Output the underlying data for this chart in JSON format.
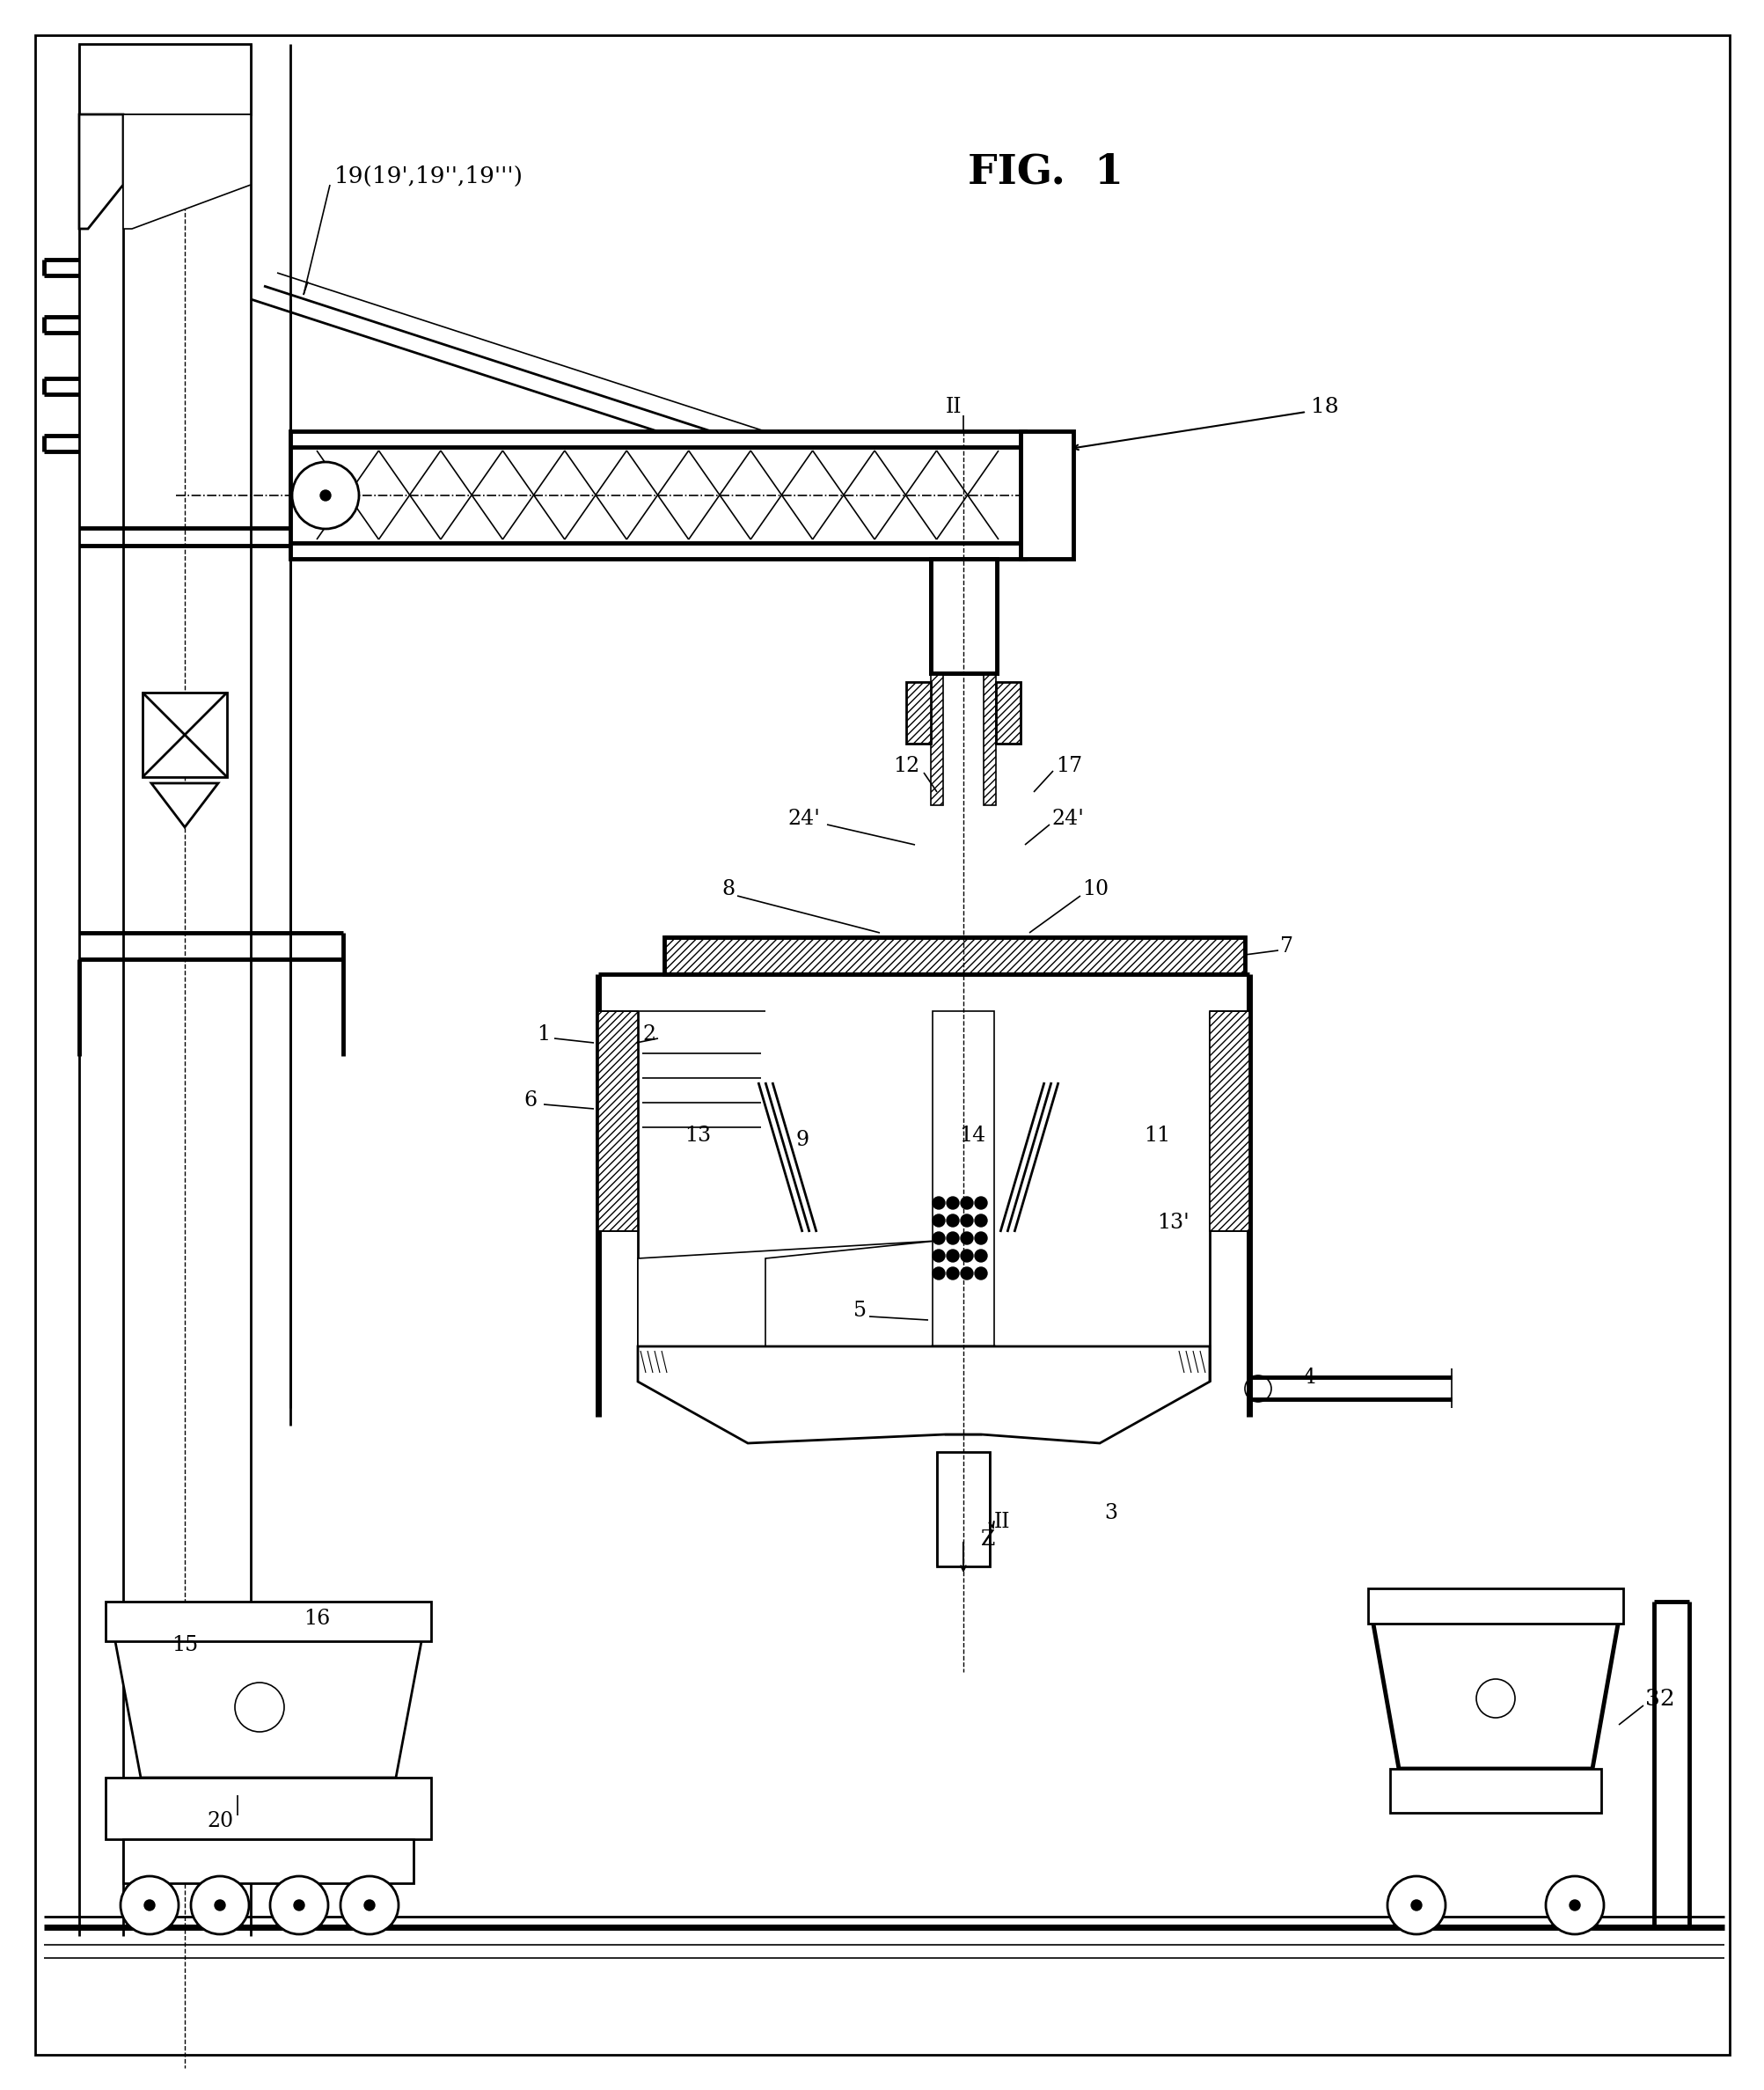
{
  "title": "FIG. 1",
  "bg_color": "#ffffff",
  "line_color": "#000000",
  "fig_width": 20.06,
  "fig_height": 23.75,
  "label_19": "19(19’,19’’,19’’’)",
  "label_18": "18",
  "label_17": "17",
  "label_12": "12",
  "label_24": "24’",
  "label_8": "8",
  "label_10": "10",
  "label_7": "7",
  "label_1": "1",
  "label_2": "2",
  "label_6": "6",
  "label_13": "13",
  "label_9": "9",
  "label_14": "14",
  "label_11": "11",
  "label_13p": "13’",
  "label_4": "4",
  "label_5": "5",
  "label_3": "3",
  "label_15": "15",
  "label_16": "16",
  "label_20": "20",
  "label_Z": "Z",
  "label_II": "II",
  "label_32": "32",
  "label_fig": "FIG.  1"
}
